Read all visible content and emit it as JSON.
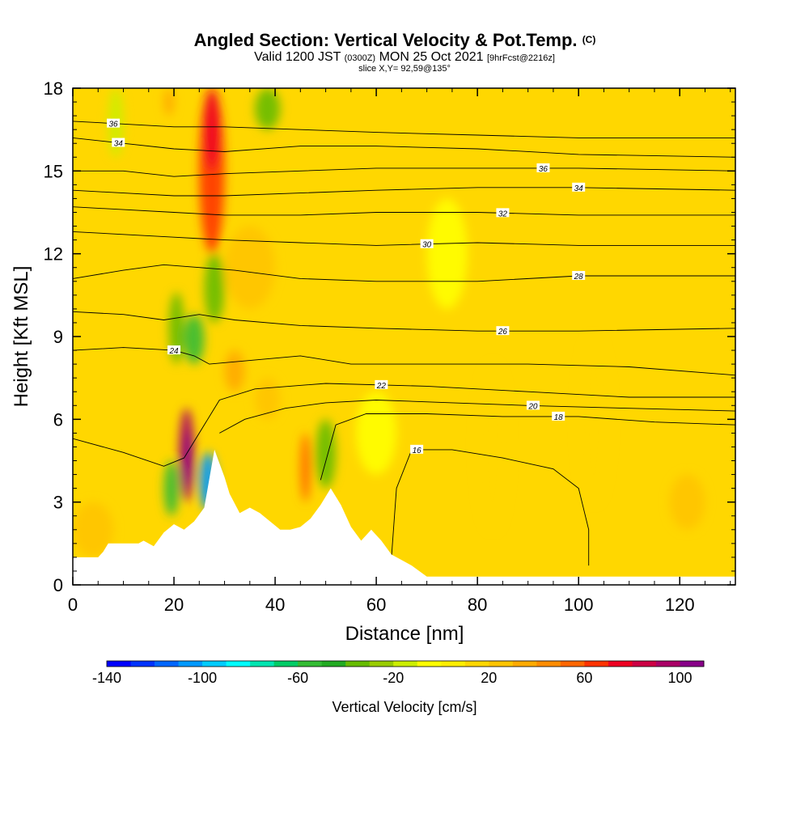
{
  "chart_data": {
    "type": "heatmap",
    "title": "Angled Section: Vertical Velocity & Pot.Temp.",
    "title_mark": "(C)",
    "subtitle": {
      "valid_prefix": "Valid 1200 JST",
      "utc": "(0300Z)",
      "date": "MON 25 Oct 2021",
      "forecast": "[9hrFcst@2216z]"
    },
    "slice_label": "slice X,Y= 92,59@135°",
    "xlabel": "Distance [nm]",
    "ylabel": "Height [Kft MSL]",
    "xlim": [
      0,
      131
    ],
    "ylim": [
      0,
      18
    ],
    "xticks": [
      0,
      20,
      40,
      60,
      80,
      100,
      120
    ],
    "yticks": [
      0,
      3,
      6,
      9,
      12,
      15,
      18
    ],
    "background_color": "#ffd700",
    "terrain": [
      [
        0,
        1
      ],
      [
        5,
        1
      ],
      [
        6,
        1.2
      ],
      [
        7,
        1.5
      ],
      [
        13,
        1.5
      ],
      [
        14,
        1.6
      ],
      [
        16,
        1.4
      ],
      [
        18,
        1.9
      ],
      [
        20,
        2.2
      ],
      [
        22,
        2
      ],
      [
        24,
        2.3
      ],
      [
        26,
        2.8
      ],
      [
        28,
        4.9
      ],
      [
        29,
        4.4
      ],
      [
        30,
        3.9
      ],
      [
        31,
        3.3
      ],
      [
        33,
        2.6
      ],
      [
        35,
        2.8
      ],
      [
        37,
        2.6
      ],
      [
        39,
        2.3
      ],
      [
        41,
        2
      ],
      [
        43,
        2
      ],
      [
        45,
        2.1
      ],
      [
        47,
        2.4
      ],
      [
        49,
        2.9
      ],
      [
        51,
        3.5
      ],
      [
        53,
        2.9
      ],
      [
        55,
        2.1
      ],
      [
        57,
        1.6
      ],
      [
        59,
        2
      ],
      [
        61,
        1.6
      ],
      [
        63,
        1.1
      ],
      [
        65,
        0.9
      ],
      [
        67,
        0.7
      ],
      [
        70,
        0.3
      ],
      [
        131,
        0.3
      ]
    ],
    "velocity_cells": [
      {
        "x": [
          18,
          21
        ],
        "y": [
          2.5,
          4.5
        ],
        "value": -60
      },
      {
        "x": [
          21,
          24
        ],
        "y": [
          3.0,
          6.4
        ],
        "value": 90
      },
      {
        "x": [
          22,
          23.6
        ],
        "y": [
          3.5,
          5.6
        ],
        "value": 110
      },
      {
        "x": [
          25,
          28.5
        ],
        "y": [
          2.7,
          4.8
        ],
        "value": -110
      },
      {
        "x": [
          19,
          22
        ],
        "y": [
          8.0,
          10.6
        ],
        "value": -40
      },
      {
        "x": [
          22,
          26
        ],
        "y": [
          8.0,
          9.8
        ],
        "value": -60
      },
      {
        "x": [
          26,
          30
        ],
        "y": [
          9.5,
          12.0
        ],
        "value": -40
      },
      {
        "x": [
          25,
          30
        ],
        "y": [
          12.0,
          18.0
        ],
        "value": 60
      },
      {
        "x": [
          26,
          29
        ],
        "y": [
          15.0,
          18.0
        ],
        "value": 70
      },
      {
        "x": [
          7,
          10
        ],
        "y": [
          15.5,
          18.0
        ],
        "value": -20
      },
      {
        "x": [
          36,
          41
        ],
        "y": [
          16.5,
          18.0
        ],
        "value": -40
      },
      {
        "x": [
          18,
          20
        ],
        "y": [
          17.0,
          18.0
        ],
        "value": 30
      },
      {
        "x": [
          45,
          47
        ],
        "y": [
          3.0,
          5.5
        ],
        "value": 50
      },
      {
        "x": [
          48,
          52
        ],
        "y": [
          3.5,
          6.0
        ],
        "value": -40
      },
      {
        "x": [
          30,
          34
        ],
        "y": [
          7.0,
          8.5
        ],
        "value": 30
      },
      {
        "x": [
          36,
          41
        ],
        "y": [
          6.0,
          7.5
        ],
        "value": 20
      },
      {
        "x": [
          118,
          125
        ],
        "y": [
          2.0,
          4.0
        ],
        "value": 20
      },
      {
        "x": [
          80,
          86
        ],
        "y": [
          2.0,
          8.0
        ],
        "value": 10
      },
      {
        "x": [
          100,
          106
        ],
        "y": [
          3.0,
          9.0
        ],
        "value": 10
      },
      {
        "x": [
          0,
          8
        ],
        "y": [
          1.0,
          3.0
        ],
        "value": 20
      },
      {
        "x": [
          30,
          40
        ],
        "y": [
          10.0,
          13.0
        ],
        "value": 20
      },
      {
        "x": [
          56,
          64
        ],
        "y": [
          4.0,
          7.0
        ],
        "value": -10
      },
      {
        "x": [
          70,
          78
        ],
        "y": [
          10.0,
          14.0
        ],
        "value": -10
      }
    ],
    "contours": [
      {
        "label": "16",
        "label_at": 68,
        "points": [
          [
            63,
            1.0
          ],
          [
            64,
            3.5
          ],
          [
            67,
            4.9
          ],
          [
            75,
            4.9
          ],
          [
            85,
            4.6
          ],
          [
            95,
            4.2
          ],
          [
            100,
            3.5
          ],
          [
            102,
            2.0
          ],
          [
            102,
            0.7
          ]
        ]
      },
      {
        "label": "18",
        "label_at": 96,
        "points": [
          [
            49,
            3.8
          ],
          [
            52,
            5.8
          ],
          [
            58,
            6.2
          ],
          [
            70,
            6.2
          ],
          [
            85,
            6.1
          ],
          [
            100,
            6.1
          ],
          [
            115,
            5.9
          ],
          [
            131,
            5.8
          ]
        ]
      },
      {
        "label": "20",
        "label_at": 91,
        "points": [
          [
            29,
            5.5
          ],
          [
            34,
            6.0
          ],
          [
            42,
            6.4
          ],
          [
            50,
            6.6
          ],
          [
            60,
            6.7
          ],
          [
            75,
            6.6
          ],
          [
            90,
            6.5
          ],
          [
            110,
            6.4
          ],
          [
            131,
            6.3
          ]
        ]
      },
      {
        "label": "22",
        "label_at": 61,
        "points": [
          [
            0,
            5.3
          ],
          [
            10,
            4.8
          ],
          [
            18,
            4.3
          ],
          [
            22,
            4.6
          ],
          [
            25,
            5.5
          ],
          [
            29,
            6.7
          ],
          [
            36,
            7.1
          ],
          [
            50,
            7.3
          ],
          [
            70,
            7.2
          ],
          [
            90,
            7.0
          ],
          [
            110,
            6.8
          ],
          [
            131,
            6.8
          ]
        ]
      },
      {
        "label": "24",
        "label_at": 20,
        "points": [
          [
            0,
            8.5
          ],
          [
            10,
            8.6
          ],
          [
            20,
            8.5
          ],
          [
            24,
            8.3
          ],
          [
            27,
            8.0
          ],
          [
            33,
            8.1
          ],
          [
            45,
            8.3
          ],
          [
            55,
            8.0
          ],
          [
            70,
            8.0
          ],
          [
            90,
            8.0
          ],
          [
            110,
            7.9
          ],
          [
            131,
            7.6
          ]
        ]
      },
      {
        "label": "26",
        "label_at": 85,
        "points": [
          [
            0,
            9.9
          ],
          [
            10,
            9.8
          ],
          [
            18,
            9.6
          ],
          [
            25,
            9.8
          ],
          [
            32,
            9.6
          ],
          [
            45,
            9.4
          ],
          [
            60,
            9.3
          ],
          [
            80,
            9.2
          ],
          [
            100,
            9.2
          ],
          [
            131,
            9.3
          ]
        ]
      },
      {
        "label": "28",
        "label_at": 100,
        "points": [
          [
            0,
            11.1
          ],
          [
            10,
            11.4
          ],
          [
            18,
            11.6
          ],
          [
            25,
            11.5
          ],
          [
            32,
            11.4
          ],
          [
            45,
            11.1
          ],
          [
            60,
            11.0
          ],
          [
            80,
            11.0
          ],
          [
            100,
            11.2
          ],
          [
            131,
            11.2
          ]
        ]
      },
      {
        "label": "30",
        "label_at": 70,
        "points": [
          [
            0,
            12.8
          ],
          [
            10,
            12.7
          ],
          [
            20,
            12.6
          ],
          [
            30,
            12.5
          ],
          [
            45,
            12.4
          ],
          [
            60,
            12.3
          ],
          [
            80,
            12.4
          ],
          [
            100,
            12.3
          ],
          [
            131,
            12.3
          ]
        ]
      },
      {
        "label": "32",
        "label_at": 85,
        "points": [
          [
            0,
            13.7
          ],
          [
            10,
            13.6
          ],
          [
            20,
            13.5
          ],
          [
            30,
            13.4
          ],
          [
            45,
            13.4
          ],
          [
            60,
            13.5
          ],
          [
            80,
            13.5
          ],
          [
            100,
            13.4
          ],
          [
            131,
            13.4
          ]
        ]
      },
      {
        "label": "34",
        "label_at": 100,
        "points": [
          [
            0,
            14.3
          ],
          [
            10,
            14.2
          ],
          [
            20,
            14.1
          ],
          [
            30,
            14.1
          ],
          [
            45,
            14.2
          ],
          [
            60,
            14.3
          ],
          [
            80,
            14.4
          ],
          [
            100,
            14.4
          ],
          [
            131,
            14.3
          ]
        ]
      },
      {
        "label": "36",
        "label_at": 93,
        "points": [
          [
            0,
            15.0
          ],
          [
            10,
            15.0
          ],
          [
            20,
            14.8
          ],
          [
            30,
            14.9
          ],
          [
            45,
            15.0
          ],
          [
            60,
            15.1
          ],
          [
            80,
            15.1
          ],
          [
            100,
            15.1
          ],
          [
            131,
            15.0
          ]
        ]
      },
      {
        "label": "36",
        "label_at": 8,
        "points": [
          [
            0,
            16.8
          ],
          [
            10,
            16.7
          ],
          [
            20,
            16.6
          ],
          [
            30,
            16.6
          ],
          [
            45,
            16.5
          ],
          [
            60,
            16.4
          ],
          [
            80,
            16.3
          ],
          [
            100,
            16.2
          ],
          [
            131,
            16.2
          ]
        ]
      },
      {
        "label": "34",
        "label_at": 9,
        "points": [
          [
            0,
            16.2
          ],
          [
            10,
            16.0
          ],
          [
            20,
            15.8
          ],
          [
            30,
            15.7
          ],
          [
            45,
            15.9
          ],
          [
            60,
            15.9
          ],
          [
            80,
            15.8
          ],
          [
            100,
            15.6
          ],
          [
            131,
            15.5
          ]
        ]
      }
    ],
    "colorbar": {
      "title": "Vertical Velocity [cm/s]",
      "min": -140,
      "max": 110,
      "step": 10,
      "tick_values": [
        -140,
        -100,
        -60,
        -20,
        20,
        60,
        100
      ],
      "tick_labels": [
        "-140",
        "-100",
        "-60",
        "-20",
        "20",
        "60",
        "100"
      ],
      "colors": [
        "#0000ff",
        "#0033ff",
        "#0066ff",
        "#0099ff",
        "#00ccff",
        "#00ffff",
        "#00e5b0",
        "#00cc66",
        "#33bb33",
        "#22aa22",
        "#66bb00",
        "#99cc00",
        "#ccee00",
        "#ffff00",
        "#ffee00",
        "#ffd700",
        "#ffc400",
        "#ffaa00",
        "#ff8c00",
        "#ff6600",
        "#ff3300",
        "#ee0022",
        "#cc0044",
        "#aa0066",
        "#880088"
      ]
    }
  }
}
